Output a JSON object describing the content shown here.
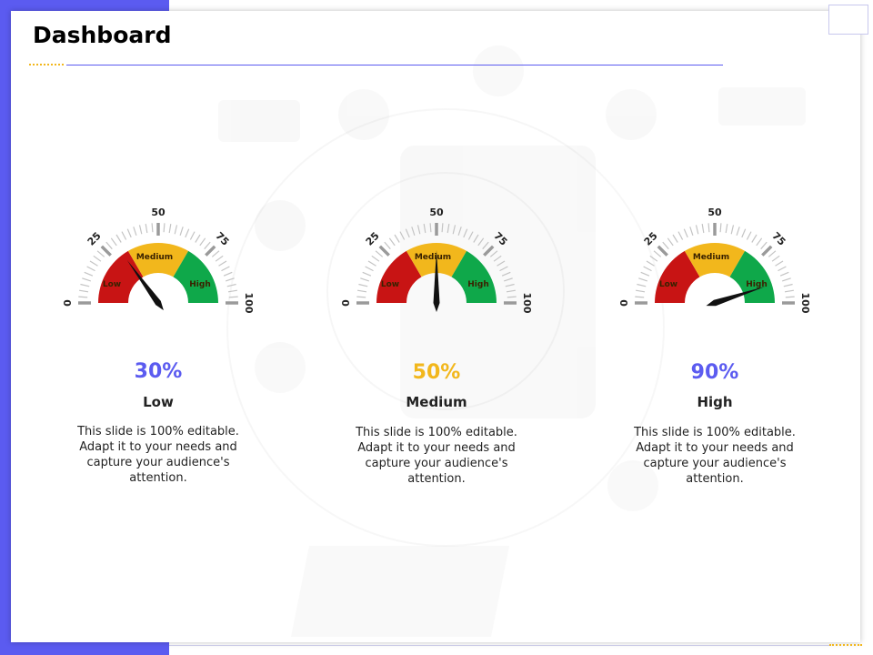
{
  "title": "Dashboard",
  "colors": {
    "accent": "#5b5bf0",
    "yellow": "#f2b71c",
    "red": "#c81414",
    "green": "#0fa84a",
    "needle": "#111111"
  },
  "gauges": [
    {
      "value": 30,
      "percent": "30%",
      "level": "Low",
      "percent_color": "#5b5bf0",
      "description": "This slide is 100% editable. Adapt it to your needs and capture your audience's attention."
    },
    {
      "value": 50,
      "percent": "50%",
      "level": "Medium",
      "percent_color": "#f2b71c",
      "description": "This slide is 100% editable. Adapt it to your needs and capture your audience's attention."
    },
    {
      "value": 90,
      "percent": "90%",
      "level": "High",
      "percent_color": "#5b5bf0",
      "description": "This slide is 100% editable. Adapt it to your needs and capture your audience's attention."
    }
  ],
  "scale_labels": [
    "0",
    "25",
    "50",
    "75",
    "100"
  ],
  "zone_labels": {
    "low": "Low",
    "medium": "Medium",
    "high": "High"
  }
}
